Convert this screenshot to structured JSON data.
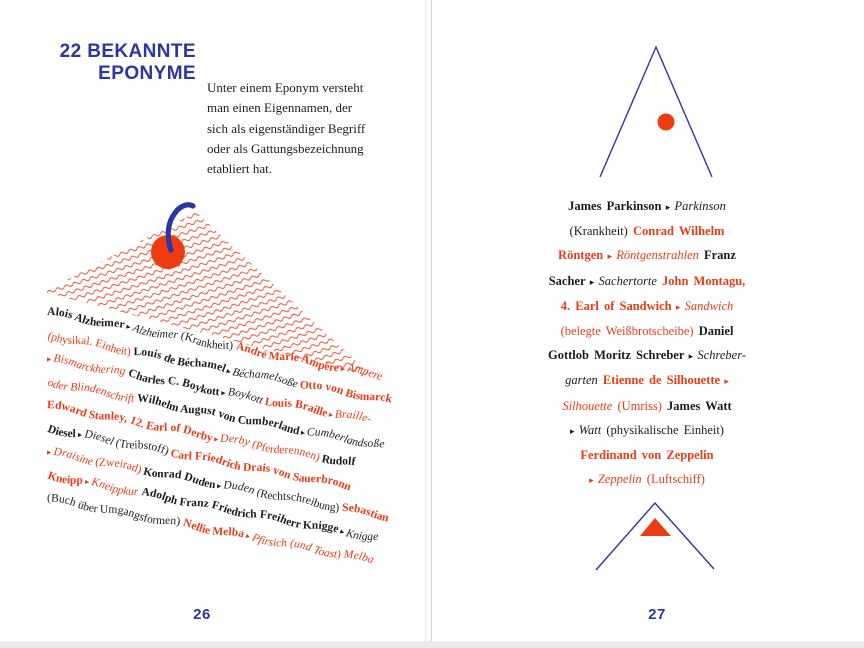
{
  "palette": {
    "blue": "#2b36a5",
    "red": "#e83c16",
    "ink": "#1c1c1c"
  },
  "left_page": {
    "page_number": "26",
    "title_line1": "22 BEKANNTE",
    "title_line2": "EPONYME",
    "intro_lines": [
      "Unter einem Eponym versteht",
      "man einen Eigennamen, der",
      "sich als eigenständiger Begriff",
      "oder als Gattungsbezeichnung",
      "etabliert hat."
    ],
    "illustration": "cherry-on-hatched-mound",
    "lines": [
      {
        "segments": [
          {
            "t": "Alois Alzheimer",
            "s": "bb"
          },
          {
            "t": " ▸ ",
            "s": "sb"
          },
          {
            "t": "Alzheimer",
            "s": "ib"
          },
          {
            "t": " (Krankheit) ",
            "s": "nb"
          },
          {
            "t": "André Marie Ampère",
            "s": "br"
          },
          {
            "t": " ▸ ",
            "s": "sr"
          },
          {
            "t": "Ampere",
            "s": "ir"
          }
        ]
      },
      {
        "segments": [
          {
            "t": "(physikal. Einheit) ",
            "s": "nr"
          },
          {
            "t": "Louis de Béchamel",
            "s": "bb"
          },
          {
            "t": " ▸ ",
            "s": "sb"
          },
          {
            "t": "Béchamelsoße",
            "s": "ib"
          },
          {
            "t": " ",
            "s": "nb"
          },
          {
            "t": "Otto von Bismarck",
            "s": "br"
          }
        ]
      },
      {
        "segments": [
          {
            "t": "▸ ",
            "s": "sr"
          },
          {
            "t": "Bismarckhering",
            "s": "ir"
          },
          {
            "t": " ",
            "s": "nb"
          },
          {
            "t": "Charles C. Boykott",
            "s": "bb"
          },
          {
            "t": " ▸ ",
            "s": "sb"
          },
          {
            "t": "Boykott",
            "s": "ib"
          },
          {
            "t": " ",
            "s": "nb"
          },
          {
            "t": "Louis Braille",
            "s": "br"
          },
          {
            "t": " ▸ ",
            "s": "sr"
          },
          {
            "t": "Braille-",
            "s": "ir"
          }
        ]
      },
      {
        "segments": [
          {
            "t": "oder Blindenschrift",
            "s": "ir"
          },
          {
            "t": " ",
            "s": "nb"
          },
          {
            "t": "Wilhelm August von Cumberland",
            "s": "bb"
          },
          {
            "t": " ▸ ",
            "s": "sb"
          },
          {
            "t": "Cumberlandsoße",
            "s": "ib"
          }
        ]
      },
      {
        "segments": [
          {
            "t": "Edward Stanley, 12. Earl of Derby",
            "s": "br"
          },
          {
            "t": " ▸ ",
            "s": "sr"
          },
          {
            "t": "Derby",
            "s": "ir"
          },
          {
            "t": " (Pferderennen) ",
            "s": "nr"
          },
          {
            "t": "Rudolf",
            "s": "bb"
          }
        ]
      },
      {
        "segments": [
          {
            "t": "Diesel",
            "s": "bb"
          },
          {
            "t": " ▸ ",
            "s": "sb"
          },
          {
            "t": "Diesel",
            "s": "ib"
          },
          {
            "t": " (Treibstoff) ",
            "s": "nb"
          },
          {
            "t": "Carl Friedrich Drais von Sauerbronn",
            "s": "br"
          }
        ]
      },
      {
        "segments": [
          {
            "t": "▸ ",
            "s": "sr"
          },
          {
            "t": "Draisine",
            "s": "ir"
          },
          {
            "t": " (Zweirad) ",
            "s": "nr"
          },
          {
            "t": "Konrad Duden",
            "s": "bb"
          },
          {
            "t": " ▸ ",
            "s": "sb"
          },
          {
            "t": "Duden",
            "s": "ib"
          },
          {
            "t": " (Rechtschreibung) ",
            "s": "nb"
          },
          {
            "t": "Sebastian",
            "s": "br"
          }
        ]
      },
      {
        "segments": [
          {
            "t": "Kneipp",
            "s": "br"
          },
          {
            "t": " ▸ ",
            "s": "sr"
          },
          {
            "t": "Kneippkur",
            "s": "ir"
          },
          {
            "t": " ",
            "s": "nb"
          },
          {
            "t": "Adolph Franz Friedrich Freiherr Knigge",
            "s": "bb"
          },
          {
            "t": " ▸ ",
            "s": "sb"
          },
          {
            "t": "Knigge",
            "s": "ib"
          }
        ]
      },
      {
        "segments": [
          {
            "t": "(Buch über Umgangsformen) ",
            "s": "nb"
          },
          {
            "t": "Nellie Melba",
            "s": "br"
          },
          {
            "t": " ▸ ",
            "s": "sr"
          },
          {
            "t": "Pfirsich (und Toast) Melba",
            "s": "ir"
          }
        ]
      }
    ]
  },
  "right_page": {
    "page_number": "27",
    "figure_top": "open-triangle-with-red-dot",
    "figure_bottom": "chevron-with-red-triangle",
    "lines": [
      {
        "segments": [
          {
            "t": "James Parkinson",
            "s": "bb"
          },
          {
            "t": " ▸ ",
            "s": "sb"
          },
          {
            "t": "Parkinson",
            "s": "ib"
          }
        ]
      },
      {
        "segments": [
          {
            "t": "(Krankheit) ",
            "s": "nb"
          },
          {
            "t": "Conrad Wilhelm",
            "s": "br"
          }
        ]
      },
      {
        "segments": [
          {
            "t": "Röntgen",
            "s": "br"
          },
          {
            "t": " ▸ ",
            "s": "sr"
          },
          {
            "t": "Röntgenstrahlen",
            "s": "ir"
          },
          {
            "t": " ",
            "s": "nb"
          },
          {
            "t": "Franz",
            "s": "bb"
          }
        ]
      },
      {
        "segments": [
          {
            "t": "Sacher",
            "s": "bb"
          },
          {
            "t": " ▸ ",
            "s": "sb"
          },
          {
            "t": "Sachertorte",
            "s": "ib"
          },
          {
            "t": " ",
            "s": "nb"
          },
          {
            "t": "John Montagu,",
            "s": "br"
          }
        ]
      },
      {
        "segments": [
          {
            "t": "4. Earl of Sandwich",
            "s": "br"
          },
          {
            "t": " ▸ ",
            "s": "sr"
          },
          {
            "t": "Sandwich",
            "s": "ir"
          }
        ]
      },
      {
        "segments": [
          {
            "t": "(belegte Weißbrotscheibe) ",
            "s": "nr"
          },
          {
            "t": "Daniel",
            "s": "bb"
          }
        ]
      },
      {
        "segments": [
          {
            "t": "Gottlob Moritz Schreber",
            "s": "bb"
          },
          {
            "t": " ▸ ",
            "s": "sb"
          },
          {
            "t": "Schreber-",
            "s": "ib"
          }
        ]
      },
      {
        "segments": [
          {
            "t": "garten ",
            "s": "ib"
          },
          {
            "t": "Etienne de Silhouette",
            "s": "br"
          },
          {
            "t": " ▸",
            "s": "sr"
          }
        ]
      },
      {
        "segments": [
          {
            "t": "Silhouette",
            "s": "ir"
          },
          {
            "t": " (Umriss) ",
            "s": "nr"
          },
          {
            "t": "James Watt",
            "s": "bb"
          }
        ]
      },
      {
        "segments": [
          {
            "t": "▸ ",
            "s": "sb"
          },
          {
            "t": "Watt",
            "s": "ib"
          },
          {
            "t": " (physikalische Einheit)",
            "s": "nb"
          }
        ]
      },
      {
        "segments": [
          {
            "t": "Ferdinand von Zeppelin",
            "s": "br"
          }
        ]
      },
      {
        "segments": [
          {
            "t": "▸ ",
            "s": "sr"
          },
          {
            "t": "Zeppelin",
            "s": "ir"
          },
          {
            "t": " (Luftschiff)",
            "s": "nr"
          }
        ]
      }
    ]
  }
}
